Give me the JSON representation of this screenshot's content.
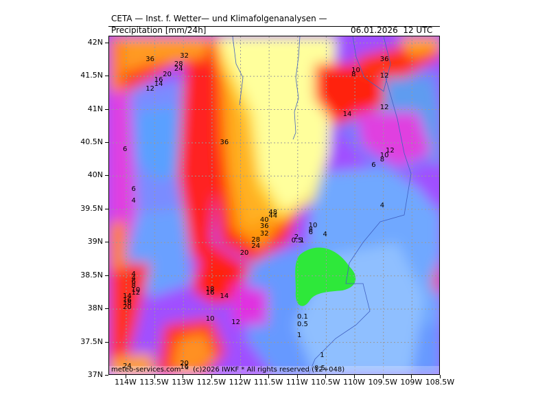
{
  "header": {
    "line1": "CETA — Inst. f. Wetter— und Klimafolgenanalysen —",
    "variable": "Precipitation [mm/24h]",
    "datetime": "06.01.2026  12 UTC"
  },
  "footer": {
    "credit": "meteo-services.com  *  (c)2026 IWKF * All rights reserved (12+048)"
  },
  "axes": {
    "lat_labels": [
      "42N",
      "41.5N",
      "41N",
      "40.5N",
      "40N",
      "39.5N",
      "39N",
      "38.5N",
      "38N",
      "37.5N",
      "37N"
    ],
    "lon_labels": [
      "114W",
      "113.5W",
      "113W",
      "112.5W",
      "112W",
      "111.5W",
      "111W",
      "110.5W",
      "110W",
      "109.5W",
      "109W",
      "108.5W"
    ]
  },
  "chart_data": {
    "type": "heatmap",
    "lon_range": [
      -114.3,
      -108.5
    ],
    "lat_range": [
      37,
      42.1
    ],
    "grid": true,
    "contour_labels": [
      {
        "text": "36",
        "lon": -113.6,
        "lat": 41.75
      },
      {
        "text": "32",
        "lon": -113.0,
        "lat": 41.8
      },
      {
        "text": "28",
        "lon": -113.1,
        "lat": 41.68
      },
      {
        "text": "24",
        "lon": -113.1,
        "lat": 41.6
      },
      {
        "text": "20",
        "lon": -113.3,
        "lat": 41.52
      },
      {
        "text": "16",
        "lon": -113.45,
        "lat": 41.44
      },
      {
        "text": "14",
        "lon": -113.45,
        "lat": 41.38
      },
      {
        "text": "12",
        "lon": -113.6,
        "lat": 41.3
      },
      {
        "text": "36",
        "lon": -112.3,
        "lat": 40.5
      },
      {
        "text": "6",
        "lon": -114.0,
        "lat": 40.4
      },
      {
        "text": "6",
        "lon": -113.85,
        "lat": 39.8
      },
      {
        "text": "4",
        "lon": -113.85,
        "lat": 39.62
      },
      {
        "text": "48",
        "lon": -111.45,
        "lat": 39.45
      },
      {
        "text": "44",
        "lon": -111.45,
        "lat": 39.4
      },
      {
        "text": "40",
        "lon": -111.6,
        "lat": 39.33
      },
      {
        "text": "36",
        "lon": -111.6,
        "lat": 39.24
      },
      {
        "text": "32",
        "lon": -111.6,
        "lat": 39.13
      },
      {
        "text": "28",
        "lon": -111.75,
        "lat": 39.03
      },
      {
        "text": "24",
        "lon": -111.75,
        "lat": 38.94
      },
      {
        "text": "20",
        "lon": -111.95,
        "lat": 38.84
      },
      {
        "text": "10",
        "lon": -110.75,
        "lat": 39.25
      },
      {
        "text": "8",
        "lon": -110.75,
        "lat": 39.19
      },
      {
        "text": "6",
        "lon": -110.75,
        "lat": 39.15
      },
      {
        "text": "4",
        "lon": -110.5,
        "lat": 39.12
      },
      {
        "text": "2",
        "lon": -111.0,
        "lat": 39.07
      },
      {
        "text": "0.5",
        "lon": -111.05,
        "lat": 39.02
      },
      {
        "text": "1",
        "lon": -110.9,
        "lat": 39.02
      },
      {
        "text": "10",
        "lon": -110.0,
        "lat": 41.58
      },
      {
        "text": "8",
        "lon": -110.0,
        "lat": 41.52
      },
      {
        "text": "14",
        "lon": -110.15,
        "lat": 40.92
      },
      {
        "text": "12",
        "lon": -109.5,
        "lat": 41.03
      },
      {
        "text": "36",
        "lon": -109.5,
        "lat": 41.75
      },
      {
        "text": "12",
        "lon": -109.5,
        "lat": 41.5
      },
      {
        "text": "12",
        "lon": -109.4,
        "lat": 40.38
      },
      {
        "text": "10",
        "lon": -109.5,
        "lat": 40.3
      },
      {
        "text": "8",
        "lon": -109.5,
        "lat": 40.24
      },
      {
        "text": "6",
        "lon": -109.65,
        "lat": 40.16
      },
      {
        "text": "4",
        "lon": -109.5,
        "lat": 39.55
      },
      {
        "text": "4",
        "lon": -113.85,
        "lat": 38.52
      },
      {
        "text": "4",
        "lon": -113.85,
        "lat": 38.46
      },
      {
        "text": "6",
        "lon": -113.85,
        "lat": 38.4
      },
      {
        "text": "8",
        "lon": -113.85,
        "lat": 38.34
      },
      {
        "text": "10",
        "lon": -113.85,
        "lat": 38.28
      },
      {
        "text": "12",
        "lon": -113.85,
        "lat": 38.24
      },
      {
        "text": "14",
        "lon": -114.0,
        "lat": 38.19
      },
      {
        "text": "16",
        "lon": -114.0,
        "lat": 38.13
      },
      {
        "text": "18",
        "lon": -114.0,
        "lat": 38.08
      },
      {
        "text": "20",
        "lon": -114.0,
        "lat": 38.02
      },
      {
        "text": "18",
        "lon": -112.55,
        "lat": 38.29
      },
      {
        "text": "16",
        "lon": -112.55,
        "lat": 38.24
      },
      {
        "text": "14",
        "lon": -112.3,
        "lat": 38.19
      },
      {
        "text": "10",
        "lon": -112.55,
        "lat": 37.85
      },
      {
        "text": "12",
        "lon": -112.1,
        "lat": 37.8
      },
      {
        "text": "0.1",
        "lon": -110.95,
        "lat": 37.88
      },
      {
        "text": "0.5",
        "lon": -110.95,
        "lat": 37.76
      },
      {
        "text": "1",
        "lon": -110.95,
        "lat": 37.6
      },
      {
        "text": "1",
        "lon": -110.55,
        "lat": 37.3
      },
      {
        "text": "0.5",
        "lon": -110.65,
        "lat": 37.1
      },
      {
        "text": "24",
        "lon": -114.0,
        "lat": 37.13
      },
      {
        "text": "20",
        "lon": -113.0,
        "lat": 37.18
      },
      {
        "text": "16",
        "lon": -113.0,
        "lat": 37.12
      }
    ]
  }
}
